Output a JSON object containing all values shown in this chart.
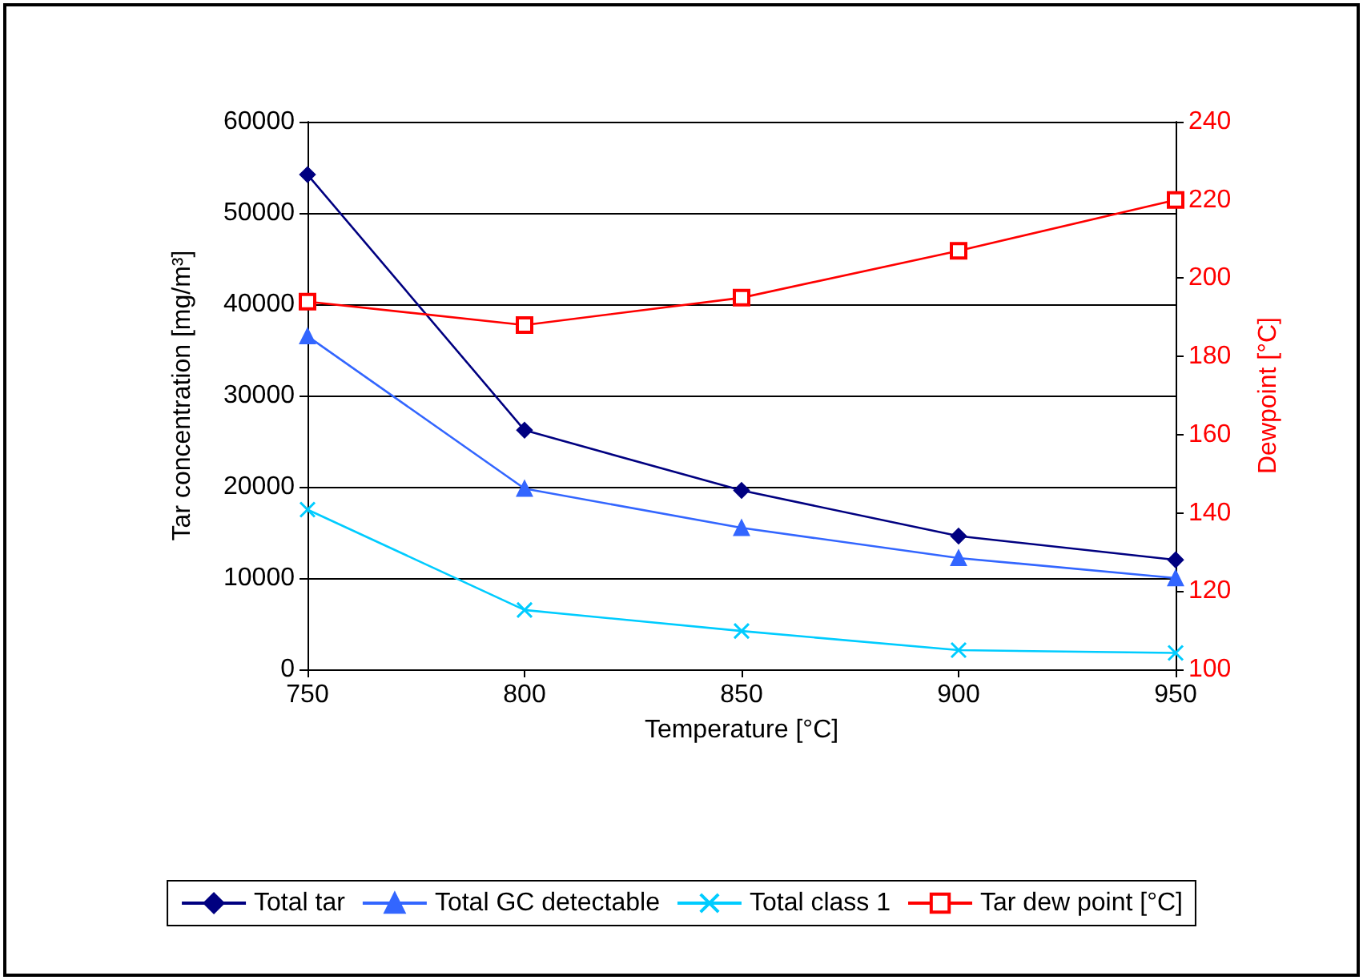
{
  "chart_data": {
    "type": "line",
    "xlabel": "Temperature [°C]",
    "ylabel": "Tar concentration [mg/m³]",
    "y2label": "Dewpoint [°C]",
    "x": [
      750,
      800,
      850,
      900,
      950
    ],
    "xlim": [
      750,
      950
    ],
    "xticks": [
      750,
      800,
      850,
      900,
      950
    ],
    "ylim": [
      0,
      60000
    ],
    "yticks": [
      0,
      10000,
      20000,
      30000,
      40000,
      50000,
      60000
    ],
    "y2lim": [
      100,
      240
    ],
    "y2ticks": [
      100,
      120,
      140,
      160,
      180,
      200,
      220,
      240
    ],
    "grid": "y",
    "legend": "bottom",
    "line_style": "solid",
    "series": [
      {
        "name": "Total tar",
        "color": "#000080",
        "marker": "diamond",
        "values": [
          54200,
          26200,
          19600,
          14600,
          12000
        ]
      },
      {
        "name": "Total GC detectable",
        "color": "#3366ff",
        "marker": "triangle",
        "values": [
          36500,
          19800,
          15500,
          12200,
          10000
        ]
      },
      {
        "name": "Total class 1",
        "color": "#00ccff",
        "marker": "cross",
        "values": [
          17500,
          6500,
          4200,
          2100,
          1800
        ]
      },
      {
        "name": "Tar dew point [°C]",
        "color": "#ff0000",
        "marker": "square",
        "axis": "y2",
        "values": [
          194,
          188,
          195,
          207,
          220
        ]
      }
    ]
  }
}
